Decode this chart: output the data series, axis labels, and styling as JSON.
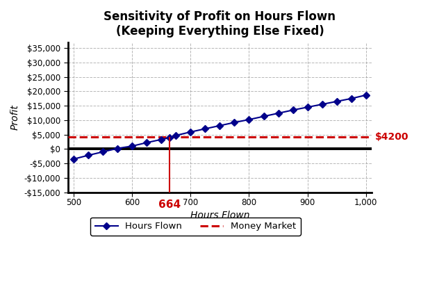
{
  "title_line1": "Sensitivity of Profit on Hours Flown",
  "title_line2": "(Keeping Everything Else Fixed)",
  "xlabel": "Hours Flown",
  "ylabel": "Profit",
  "x_data": [
    500,
    525,
    550,
    575,
    600,
    625,
    650,
    664,
    675,
    700,
    725,
    750,
    775,
    800,
    825,
    850,
    875,
    900,
    925,
    950,
    975,
    1000
  ],
  "y_data": [
    -3500,
    -2200,
    -1000,
    200,
    1000,
    2200,
    3300,
    3900,
    4700,
    5900,
    7000,
    8100,
    9200,
    10200,
    11300,
    12400,
    13500,
    14500,
    15500,
    16500,
    17500,
    18700
  ],
  "line_color": "#00008B",
  "line_marker": "D",
  "money_market_value": 4200,
  "money_market_color": "#CC0000",
  "money_market_label": "Money Market",
  "hours_flown_label": "Hours Flown",
  "breakeven_x": 664,
  "breakeven_color": "#CC0000",
  "zero_line_color": "#000000",
  "annotation_text": "$4200",
  "breakeven_label": "664",
  "xlim": [
    490,
    1010
  ],
  "ylim": [
    -15000,
    37000
  ],
  "yticks": [
    -15000,
    -10000,
    -5000,
    0,
    5000,
    10000,
    15000,
    20000,
    25000,
    30000,
    35000
  ],
  "xticks": [
    500,
    600,
    700,
    800,
    900,
    1000
  ],
  "background_color": "#FFFFFF",
  "grid_color": "#999999",
  "title_fontsize": 12,
  "axis_label_fontsize": 10,
  "tick_fontsize": 8.5,
  "legend_fontsize": 9.5
}
